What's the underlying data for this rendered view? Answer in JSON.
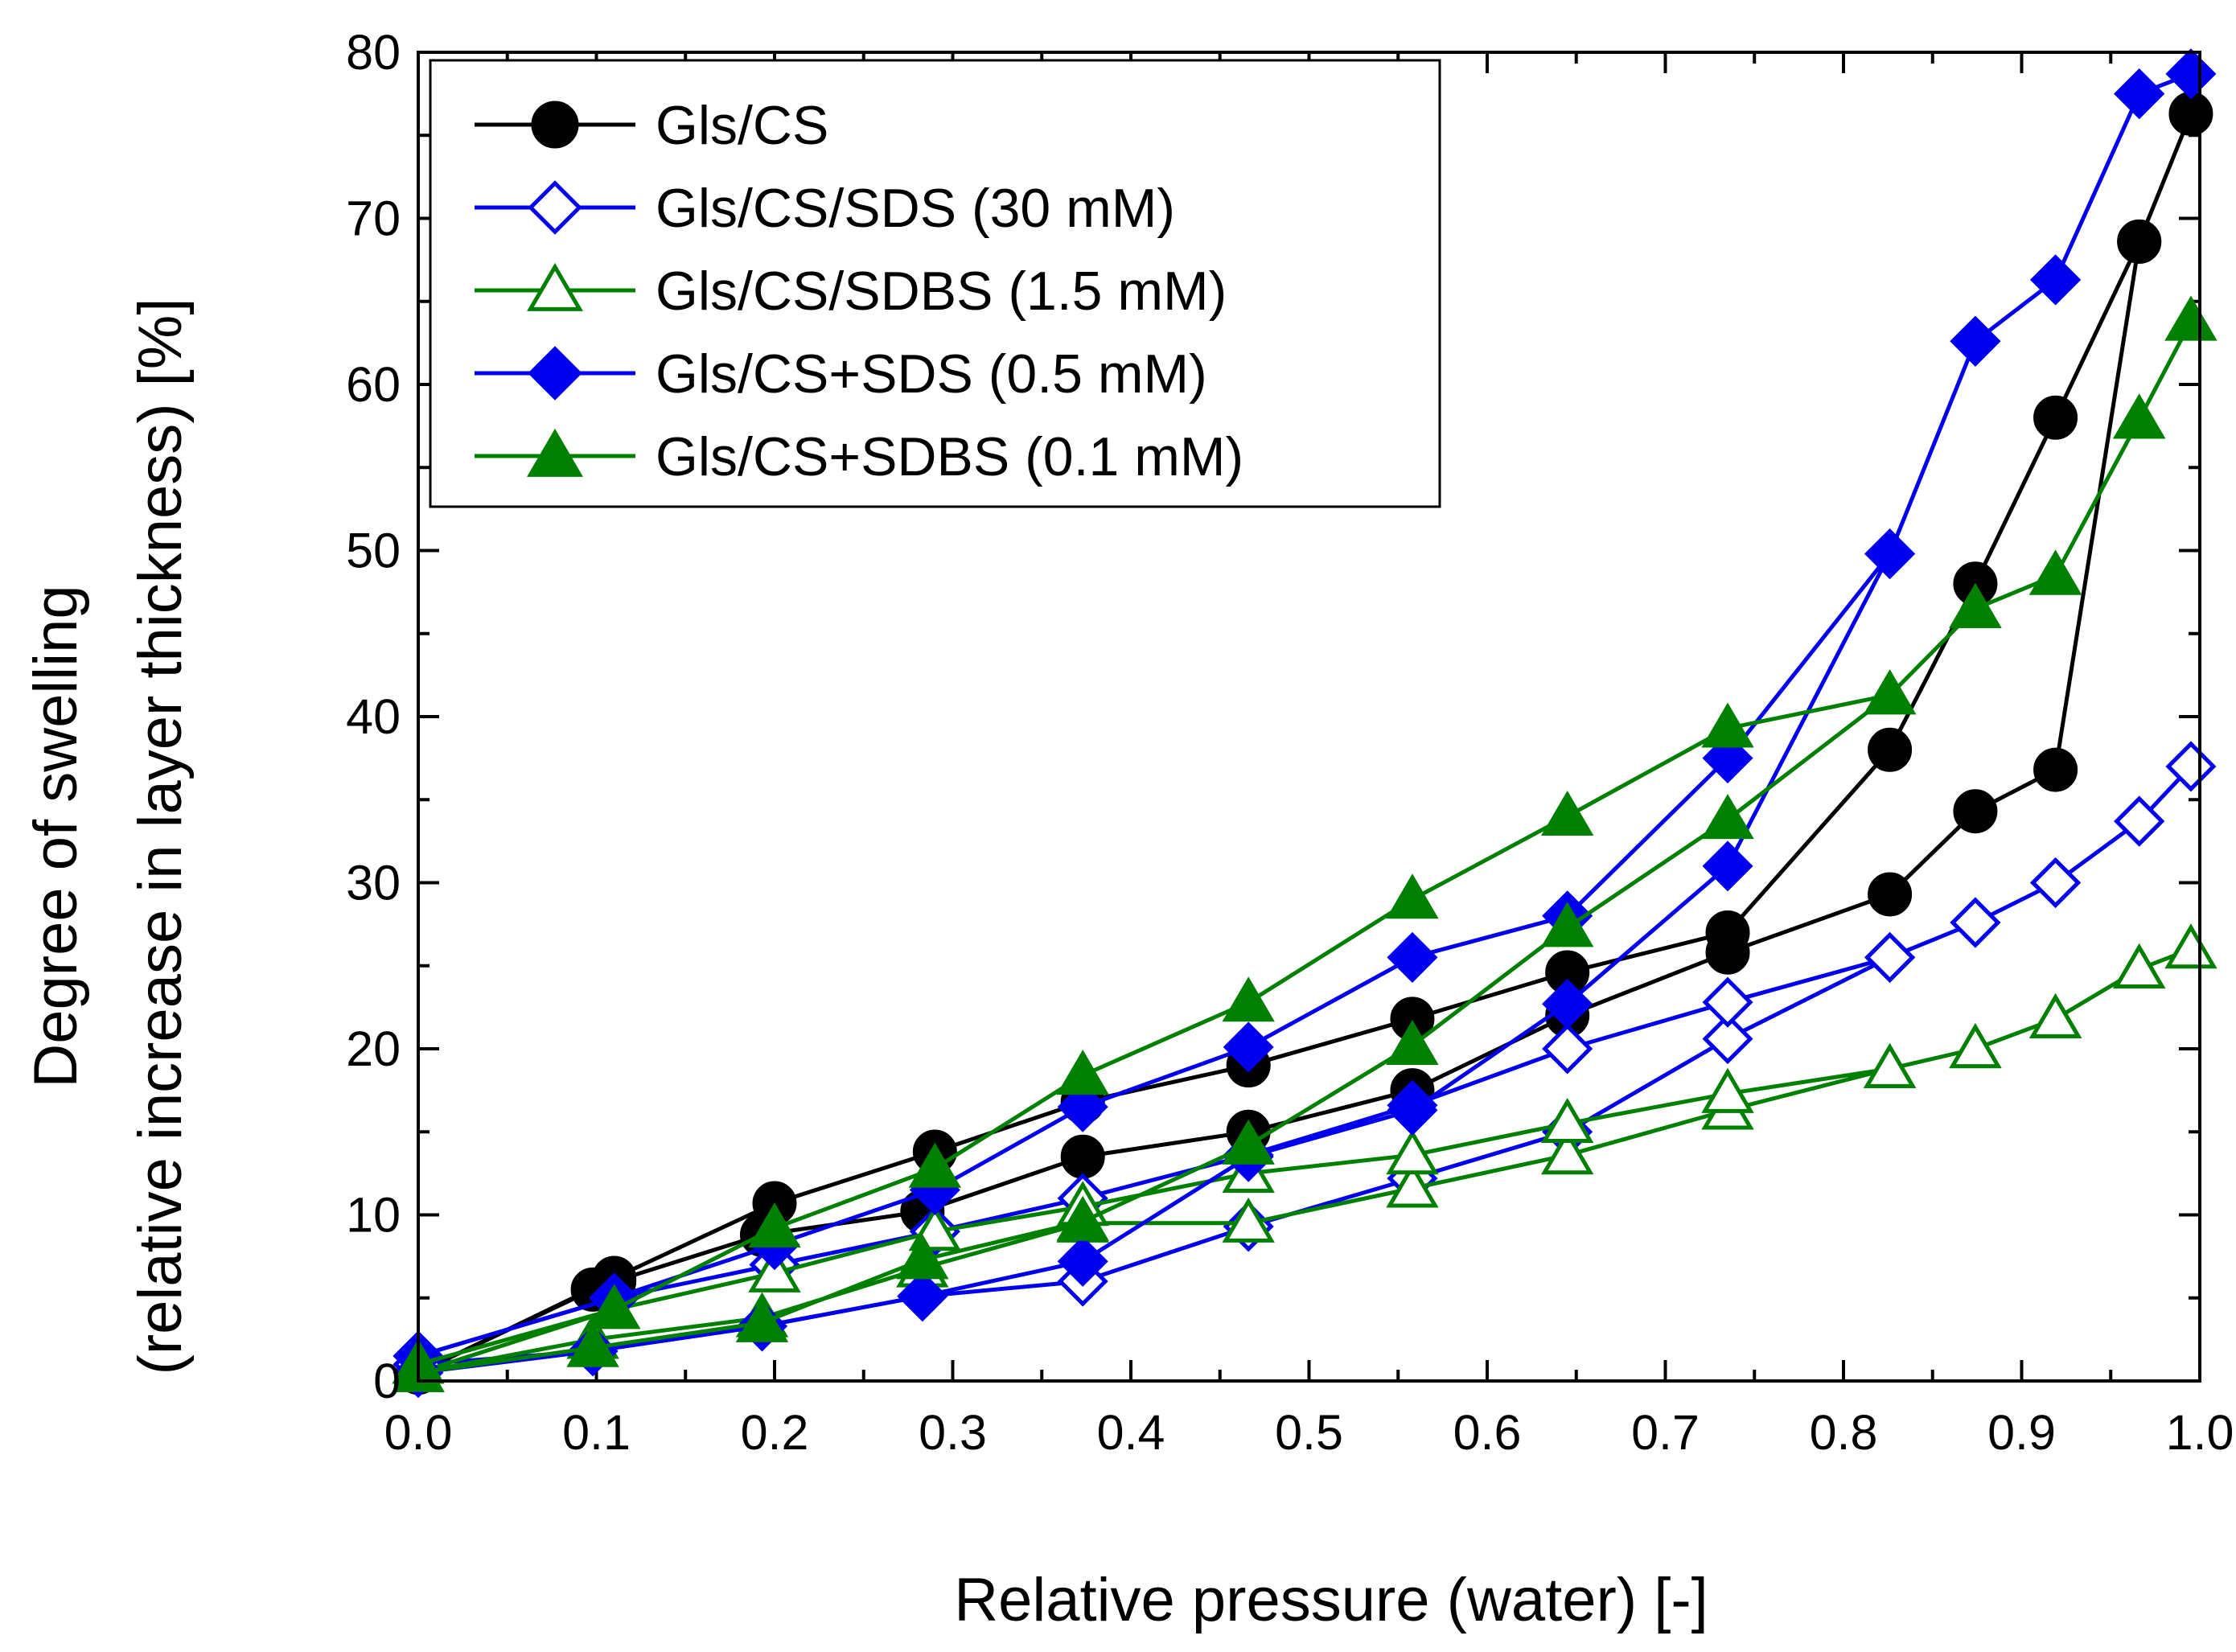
{
  "chart_data": {
    "type": "line",
    "xlabel": "Relative pressure (water) [-]",
    "ylabel_line1": "Degree of swelling",
    "ylabel_line2": "(relative increase in layer thickness) [%]",
    "xlim": [
      0.0,
      1.0
    ],
    "ylim": [
      0,
      80
    ],
    "xticks": [
      0.0,
      0.1,
      0.2,
      0.3,
      0.4,
      0.5,
      0.6,
      0.7,
      0.8,
      0.9,
      1.0
    ],
    "xtick_labels": [
      "0.0",
      "0.1",
      "0.2",
      "0.3",
      "0.4",
      "0.5",
      "0.6",
      "0.7",
      "0.8",
      "0.9",
      "1.0"
    ],
    "yticks": [
      0,
      10,
      20,
      30,
      40,
      50,
      60,
      70,
      80
    ],
    "ytick_labels": [
      "0",
      "10",
      "20",
      "30",
      "40",
      "50",
      "60",
      "70",
      "80"
    ],
    "legend_position": "top-left",
    "series": [
      {
        "name": "Gls/CS",
        "color": "#000000",
        "marker": "circle",
        "filled": true,
        "x": [
          0.0,
          0.098,
          0.11,
          0.193,
          0.283,
          0.373,
          0.466,
          0.558,
          0.645,
          0.735,
          0.826,
          0.874,
          0.919,
          0.966,
          0.995,
          0.966,
          0.919,
          0.874,
          0.826,
          0.735,
          0.645,
          0.558,
          0.466,
          0.373,
          0.29,
          0.2,
          0.11,
          0.0
        ],
        "y": [
          0.5,
          5.5,
          6.0,
          8.8,
          10.2,
          13.5,
          15.0,
          17.5,
          22.0,
          25.8,
          29.3,
          34.3,
          36.8,
          68.6,
          76.3,
          68.6,
          58.0,
          48.0,
          38.0,
          27.0,
          24.6,
          21.8,
          19.0,
          16.8,
          13.8,
          10.7,
          6.2,
          0.5
        ]
      },
      {
        "name": "Gls/CS/SDS (30 mM)",
        "color": "#0000ee",
        "marker": "diamond",
        "filled": false,
        "x": [
          0.0,
          0.098,
          0.193,
          0.283,
          0.373,
          0.466,
          0.558,
          0.645,
          0.735,
          0.826,
          0.874,
          0.919,
          0.966,
          0.995,
          0.966,
          0.919,
          0.874,
          0.826,
          0.735,
          0.645,
          0.558,
          0.466,
          0.373,
          0.29,
          0.2,
          0.11,
          0.0
        ],
        "y": [
          1.0,
          1.8,
          3.3,
          5.1,
          6.0,
          9.3,
          12.2,
          15.0,
          20.6,
          25.5,
          27.6,
          30.0,
          33.7,
          37.0,
          33.7,
          30.0,
          27.6,
          25.5,
          22.8,
          20.0,
          16.6,
          13.6,
          11.0,
          9.0,
          7.0,
          5.0,
          1.5
        ]
      },
      {
        "name": "Gls/CS/SDBS (1.5 mM)",
        "color": "#008000",
        "marker": "triangle",
        "filled": false,
        "x": [
          0.0,
          0.098,
          0.193,
          0.283,
          0.373,
          0.466,
          0.558,
          0.645,
          0.735,
          0.826,
          0.874,
          0.919,
          0.966,
          0.995,
          0.966,
          0.919,
          0.874,
          0.826,
          0.735,
          0.645,
          0.558,
          0.466,
          0.373,
          0.29,
          0.2,
          0.11,
          0.0
        ],
        "y": [
          0.5,
          2.5,
          3.8,
          6.8,
          9.5,
          9.5,
          11.6,
          13.6,
          16.3,
          18.8,
          20.0,
          21.8,
          24.8,
          26.0,
          24.8,
          21.8,
          20.0,
          18.8,
          17.3,
          15.5,
          13.6,
          12.5,
          10.5,
          9.0,
          6.5,
          4.3,
          0.5
        ]
      },
      {
        "name": "Gls/CS+SDS (0.5 mM)",
        "color": "#0000ee",
        "marker": "diamond",
        "filled": true,
        "x": [
          0.0,
          0.098,
          0.193,
          0.283,
          0.373,
          0.466,
          0.558,
          0.645,
          0.735,
          0.826,
          0.874,
          0.919,
          0.966,
          0.995,
          0.966,
          0.919,
          0.874,
          0.826,
          0.735,
          0.645,
          0.558,
          0.466,
          0.373,
          0.29,
          0.2,
          0.11,
          0.0
        ],
        "y": [
          0.5,
          1.8,
          3.3,
          5.1,
          7.2,
          13.5,
          16.3,
          22.7,
          31.0,
          49.8,
          62.6,
          66.3,
          77.5,
          78.7,
          77.5,
          66.3,
          62.6,
          49.8,
          37.5,
          28.0,
          25.5,
          20.1,
          16.5,
          11.5,
          8.2,
          5.0,
          1.5
        ]
      },
      {
        "name": "Gls/CS+SDBS (0.1 mM)",
        "color": "#008000",
        "marker": "triangle",
        "filled": true,
        "x": [
          0.0,
          0.098,
          0.193,
          0.283,
          0.373,
          0.466,
          0.558,
          0.645,
          0.735,
          0.826,
          0.874,
          0.919,
          0.966,
          0.995,
          0.966,
          0.919,
          0.874,
          0.826,
          0.735,
          0.645,
          0.558,
          0.466,
          0.373,
          0.29,
          0.2,
          0.11,
          0.0
        ],
        "y": [
          0.5,
          2.0,
          3.5,
          7.3,
          9.6,
          14.2,
          20.2,
          27.3,
          33.8,
          41.3,
          46.5,
          48.5,
          57.9,
          63.8,
          57.9,
          48.5,
          46.5,
          41.3,
          39.3,
          34.0,
          29.0,
          22.8,
          18.4,
          12.8,
          9.2,
          4.3,
          1.0
        ]
      }
    ]
  }
}
